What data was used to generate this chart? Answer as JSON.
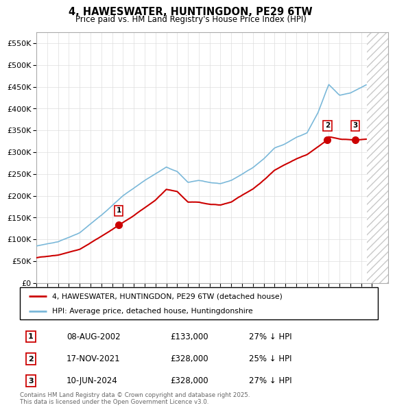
{
  "title": "4, HAWESWATER, HUNTINGDON, PE29 6TW",
  "subtitle": "Price paid vs. HM Land Registry's House Price Index (HPI)",
  "ylim": [
    0,
    575000
  ],
  "yticks": [
    0,
    50000,
    100000,
    150000,
    200000,
    250000,
    300000,
    350000,
    400000,
    450000,
    500000,
    550000
  ],
  "ytick_labels": [
    "£0",
    "£50K",
    "£100K",
    "£150K",
    "£200K",
    "£250K",
    "£300K",
    "£350K",
    "£400K",
    "£450K",
    "£500K",
    "£550K"
  ],
  "xlim_start": 1995.0,
  "xlim_end": 2027.5,
  "hpi_color": "#7ab8d9",
  "price_color": "#cc0000",
  "annotation_box_color": "#cc0000",
  "legend_label_red": "4, HAWESWATER, HUNTINGDON, PE29 6TW (detached house)",
  "legend_label_blue": "HPI: Average price, detached house, Huntingdonshire",
  "transactions": [
    {
      "num": 1,
      "date": "08-AUG-2002",
      "price": 133000,
      "pct": "27% ↓ HPI",
      "x": 2002.6
    },
    {
      "num": 2,
      "date": "17-NOV-2021",
      "price": 328000,
      "pct": "25% ↓ HPI",
      "x": 2021.88
    },
    {
      "num": 3,
      "date": "10-JUN-2024",
      "price": 328000,
      "pct": "27% ↓ HPI",
      "x": 2024.45
    }
  ],
  "footnote": "Contains HM Land Registry data © Crown copyright and database right 2025.\nThis data is licensed under the Open Government Licence v3.0.",
  "background_color": "#ffffff",
  "grid_color": "#dddddd",
  "hatch_region_start": 2025.5,
  "hatch_region_end": 2027.5
}
